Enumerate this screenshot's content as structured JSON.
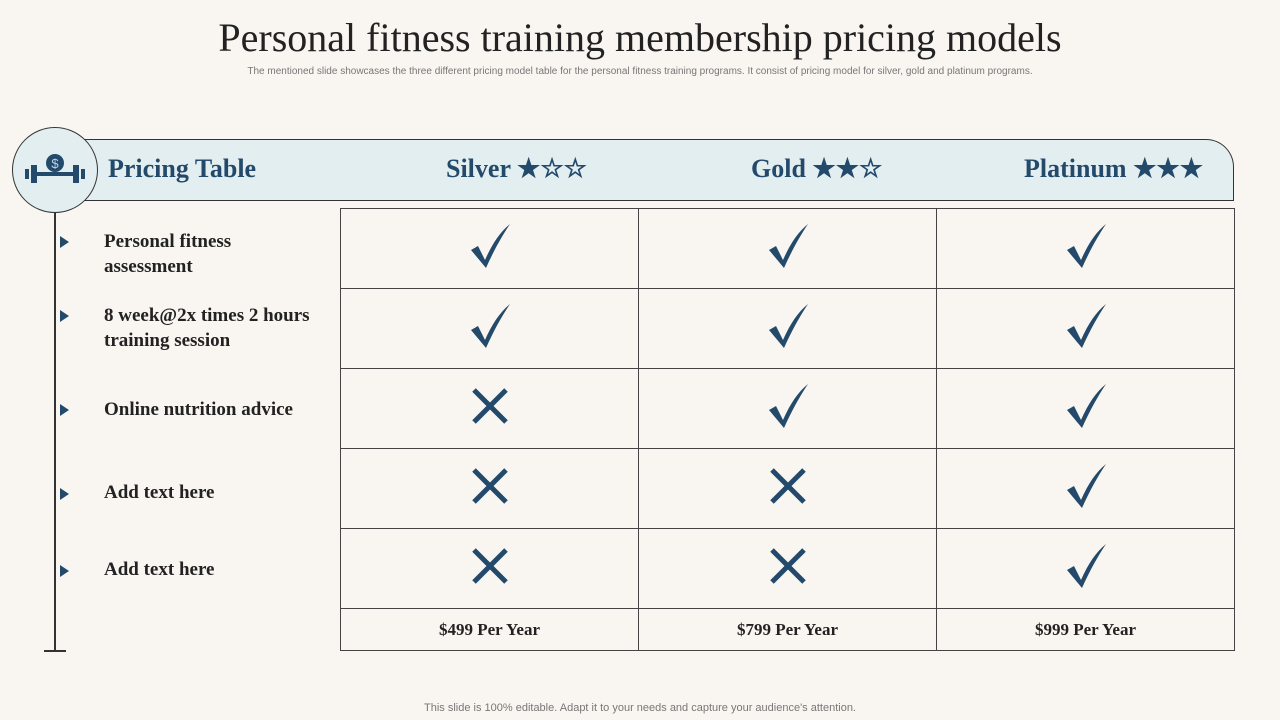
{
  "title": "Personal fitness training membership pricing models",
  "subtitle": "The mentioned slide showcases the three different pricing model table for the personal fitness training programs. It consist of pricing model for silver, gold and platinum programs.",
  "header": {
    "label": "Pricing Table",
    "icon": "dumbbell-dollar-icon",
    "plans": [
      {
        "name": "Silver",
        "stars": "★☆☆"
      },
      {
        "name": "Gold",
        "stars": "★★☆"
      },
      {
        "name": "Platinum",
        "stars": "★★★"
      }
    ]
  },
  "features": [
    {
      "label": "Personal fitness assessment",
      "values": [
        true,
        true,
        true
      ]
    },
    {
      "label": "8 week@2x times 2 hours training  session",
      "values": [
        true,
        true,
        true
      ]
    },
    {
      "label": "Online nutrition  advice",
      "values": [
        false,
        true,
        true
      ]
    },
    {
      "label": "Add text here",
      "values": [
        false,
        false,
        true
      ]
    },
    {
      "label": "Add text here",
      "values": [
        false,
        false,
        true
      ]
    }
  ],
  "prices": [
    "$499 Per Year",
    "$799 Per Year",
    "$999 Per Year"
  ],
  "footer": "This slide is 100% editable. Adapt it to your needs and capture your audience's attention.",
  "colors": {
    "accent": "#244a6b",
    "band": "#e3eef0",
    "background": "#f9f6f1"
  }
}
